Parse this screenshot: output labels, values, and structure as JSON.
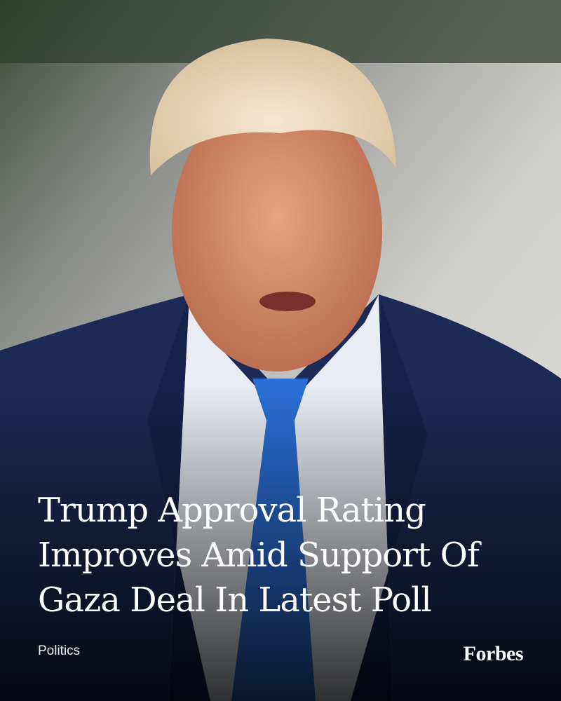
{
  "headline": [
    "Trump Approval Rating",
    "Improves Amid Support Of",
    "Gaza Deal In Latest Poll"
  ],
  "category": "Politics",
  "brand": "Forbes"
}
